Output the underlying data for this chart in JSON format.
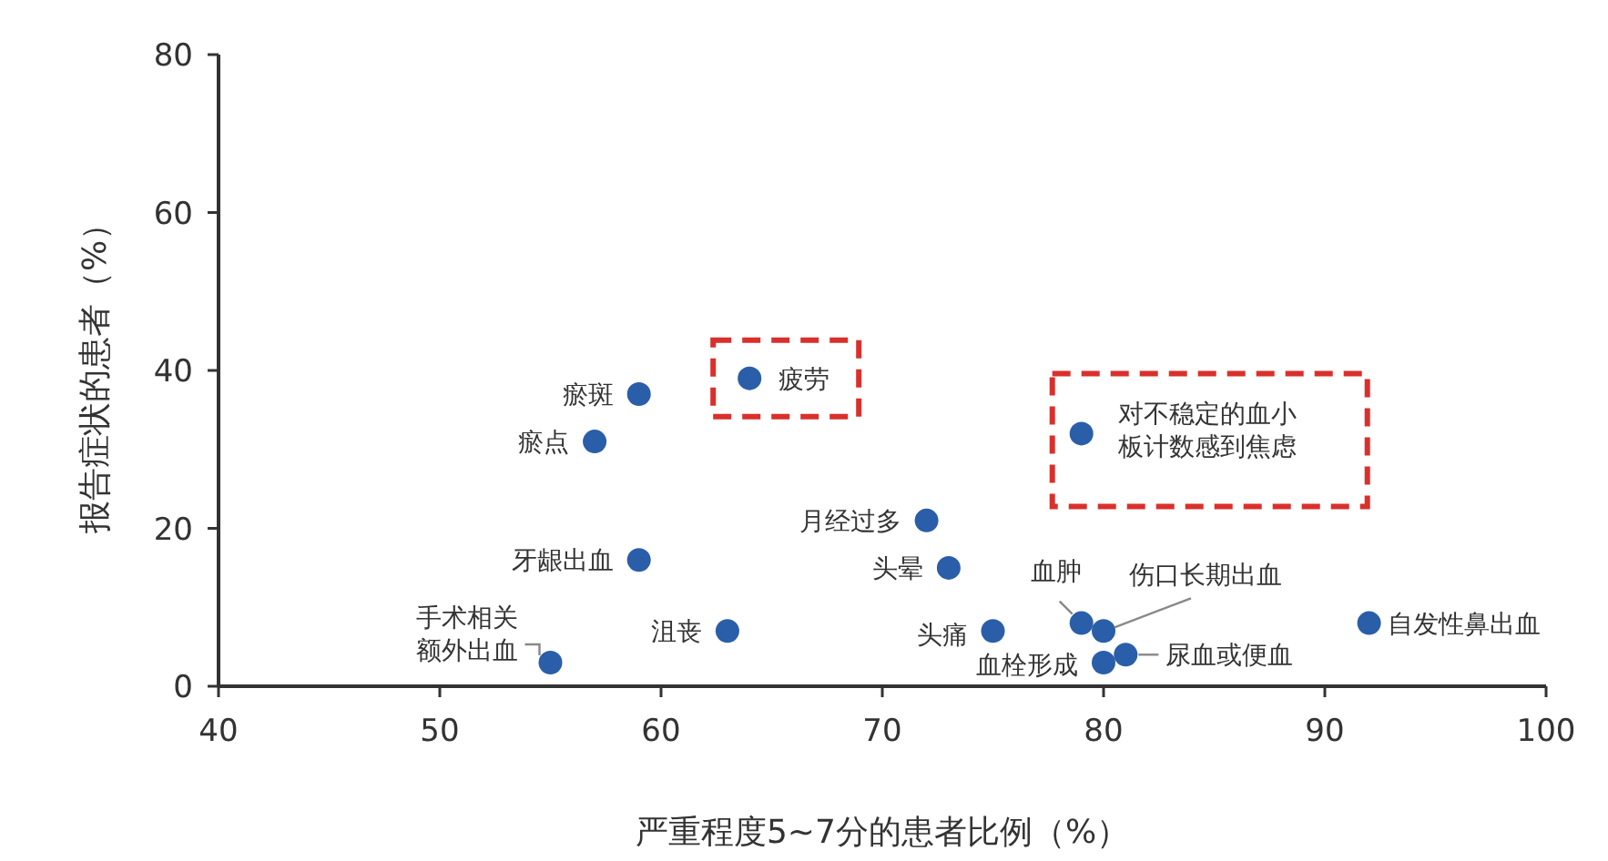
{
  "chart_data": {
    "type": "scatter",
    "xlabel": "严重程度5~7分的患者比例（%）",
    "ylabel": "报告症状的患者（%）",
    "xlim": [
      40,
      100
    ],
    "ylim": [
      0,
      80
    ],
    "xticks": [
      40,
      50,
      60,
      70,
      80,
      90,
      100
    ],
    "yticks": [
      0,
      20,
      40,
      60,
      80
    ],
    "grid": false,
    "marker": "circle",
    "x": [
      55,
      59,
      57,
      59,
      63,
      64,
      72,
      73,
      75,
      79,
      80,
      80,
      81,
      79,
      92
    ],
    "series": [
      {
        "color": "#2a5ea8",
        "values": [
          3,
          37,
          31,
          16,
          7,
          39,
          21,
          15,
          7,
          8,
          7,
          3,
          4,
          32,
          8
        ]
      }
    ],
    "annotations": [
      {
        "text": "手术相关额外出血",
        "x": 55,
        "y": 3
      },
      {
        "text": "瘀斑",
        "x": 59,
        "y": 37
      },
      {
        "text": "瘀点",
        "x": 57,
        "y": 31
      },
      {
        "text": "牙龈出血",
        "x": 59,
        "y": 16
      },
      {
        "text": "沮丧",
        "x": 63,
        "y": 7
      },
      {
        "text": "疲劳",
        "x": 64,
        "y": 39
      },
      {
        "text": "月经过多",
        "x": 72,
        "y": 21
      },
      {
        "text": "头晕",
        "x": 73,
        "y": 15
      },
      {
        "text": "头痛",
        "x": 75,
        "y": 7
      },
      {
        "text": "血肿",
        "x": 79,
        "y": 8
      },
      {
        "text": "伤口长期出血",
        "x": 80,
        "y": 7
      },
      {
        "text": "血栓形成",
        "x": 80,
        "y": 3
      },
      {
        "text": "尿血或便血",
        "x": 81,
        "y": 4
      },
      {
        "text": "对不稳定的血小板计数感到焦虑",
        "x": 79,
        "y": 32
      },
      {
        "text": "自发性鼻出血",
        "x": 92,
        "y": 8
      }
    ]
  }
}
